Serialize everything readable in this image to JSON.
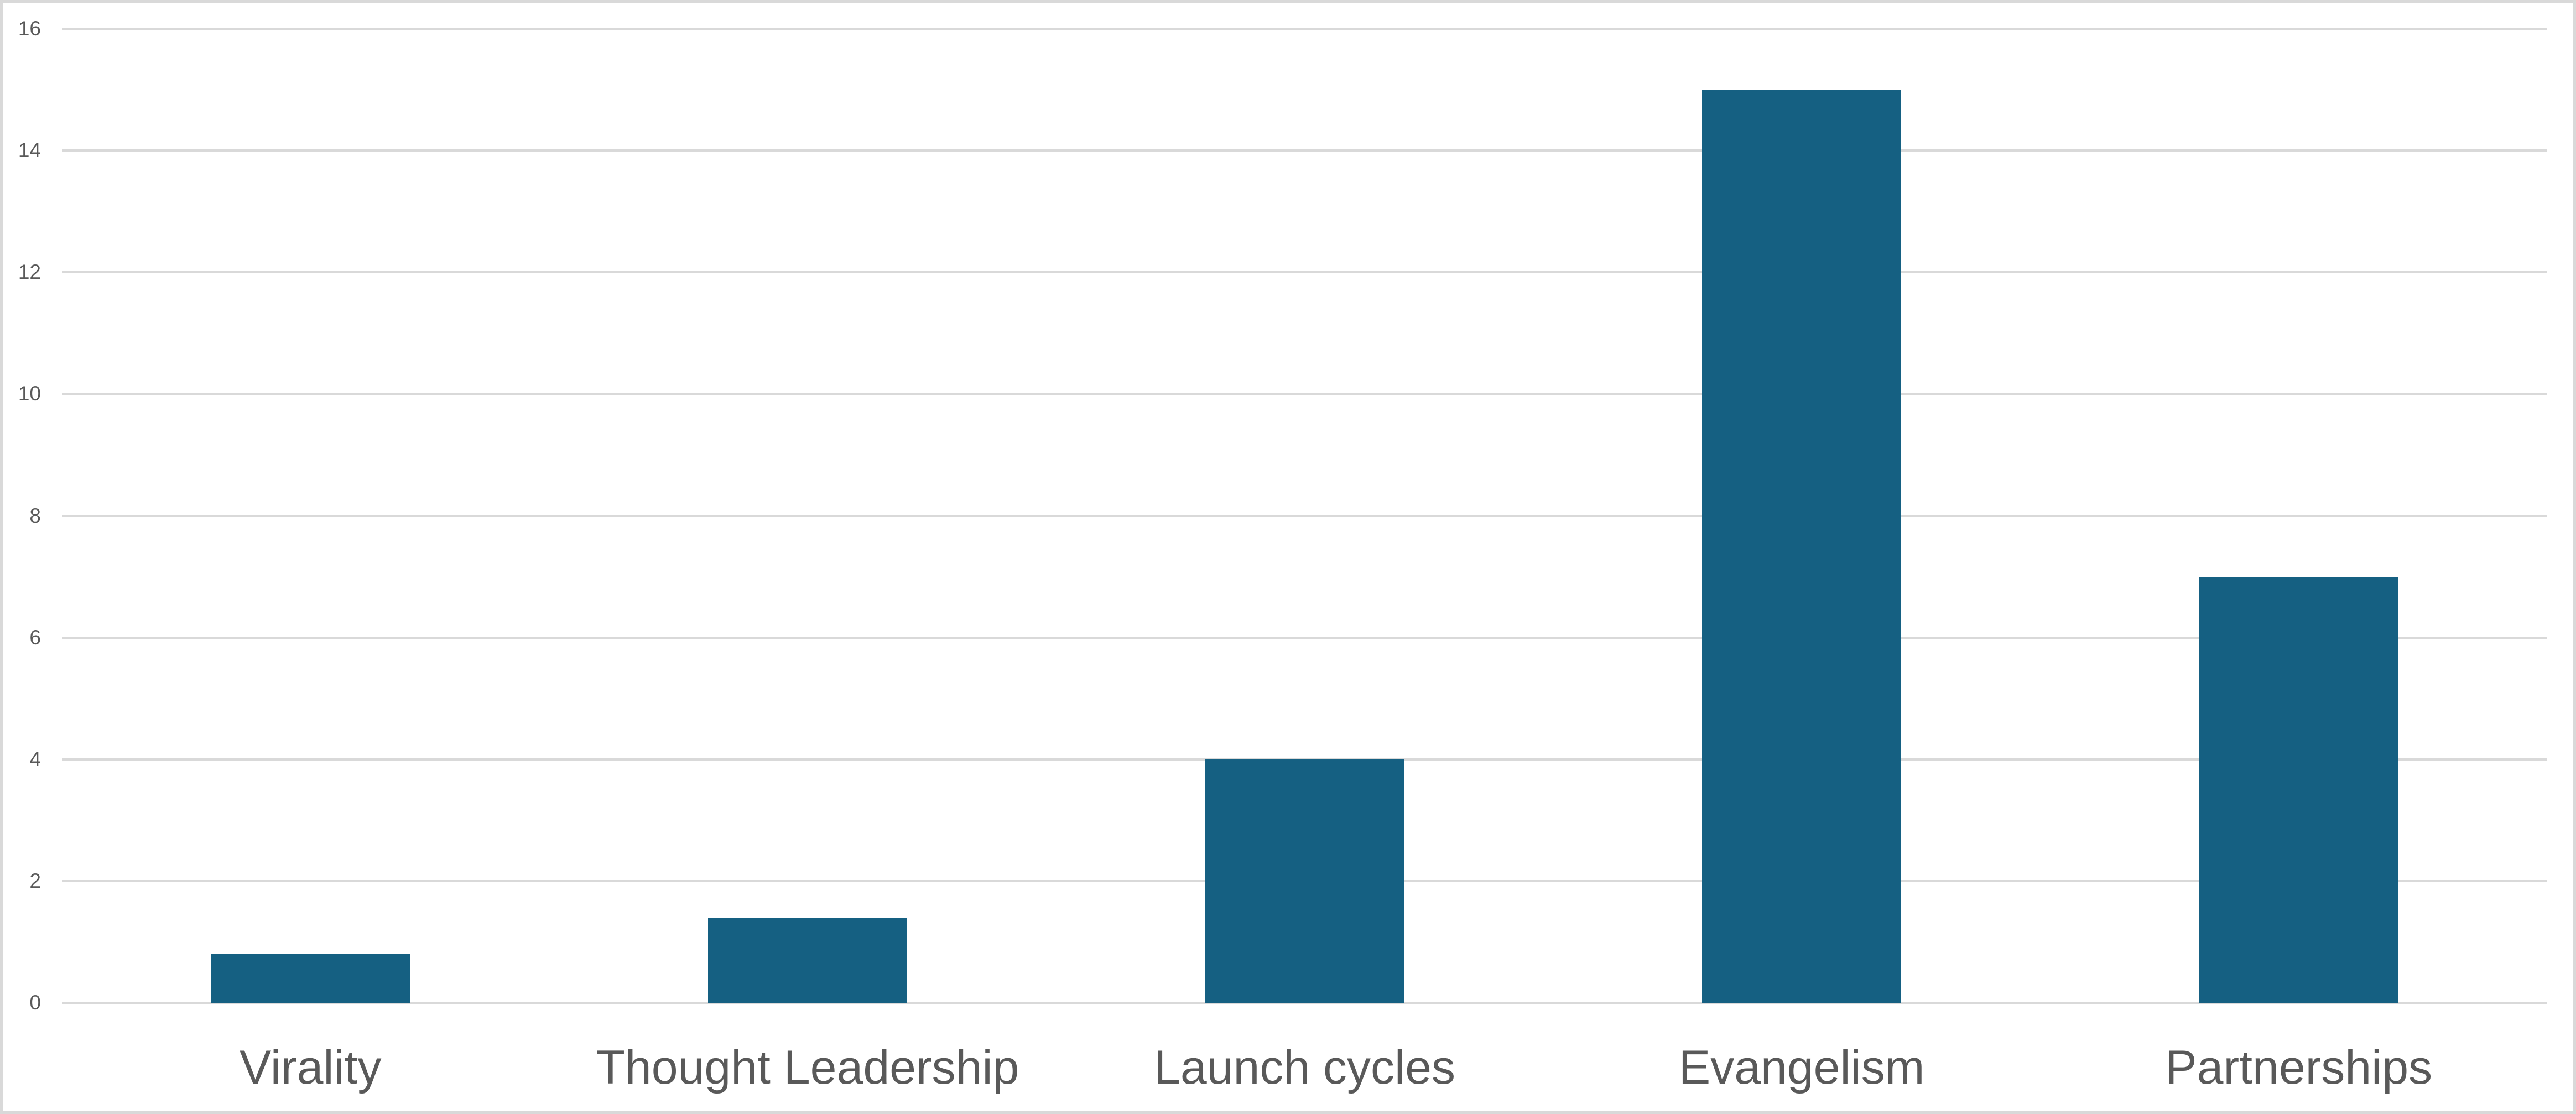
{
  "chart_data": {
    "type": "bar",
    "title": "",
    "xlabel": "",
    "ylabel": "",
    "categories": [
      "Virality",
      "Thought Leadership",
      "Launch cycles",
      "Evangelism",
      "Partnerships"
    ],
    "values": [
      0.8,
      1.4,
      4,
      15,
      7
    ],
    "ylim": [
      0,
      16
    ],
    "yticks": [
      0,
      2,
      4,
      6,
      8,
      10,
      12,
      14,
      16
    ],
    "grid": true,
    "legend": false,
    "gap_ratio": 0.6,
    "colors": {
      "bar": "#156082",
      "gridline": "#D9D9D9",
      "axis_text": "#595959",
      "chart_border": "#D9D9D9",
      "background": "#FFFFFF"
    }
  }
}
